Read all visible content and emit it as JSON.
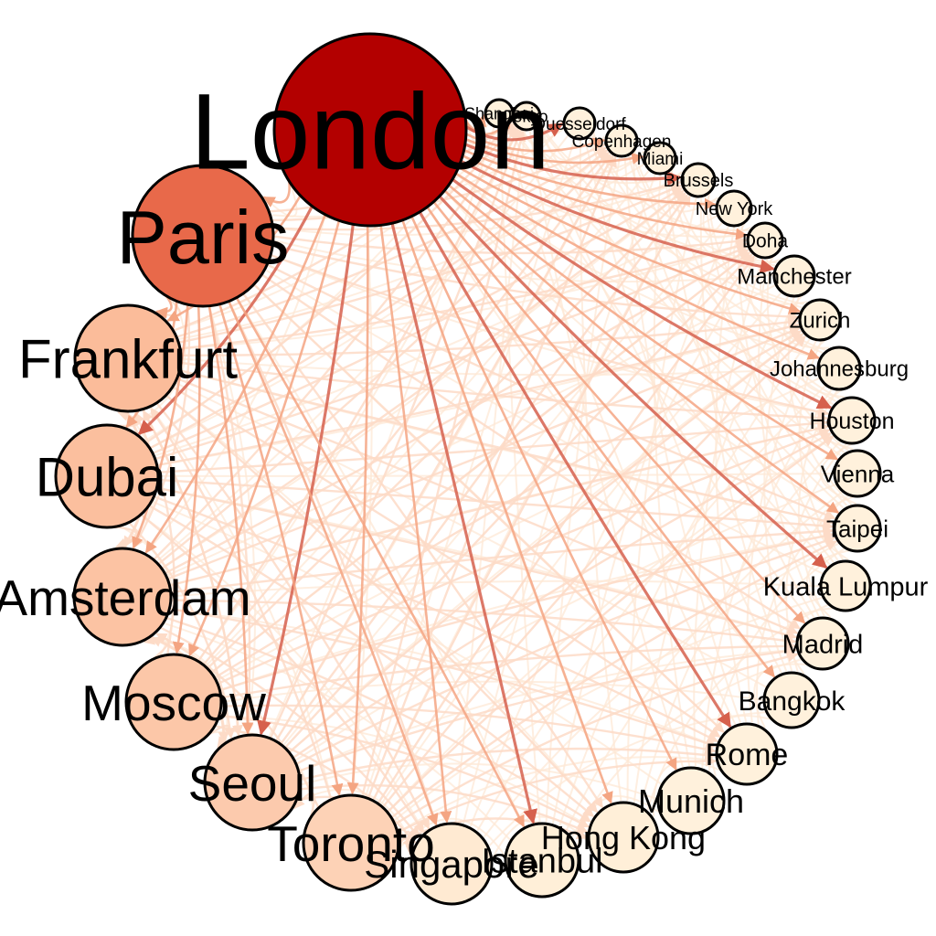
{
  "palette": {
    "background": "#ffffff",
    "node_stroke": "#000000",
    "edge_strong": "#d6604d",
    "edge_mid": "#f4a582",
    "edge_light": "#fddbc7",
    "edge_faint": "#fee8d6"
  },
  "cities": [
    {
      "name": "London",
      "color": "#b30000",
      "tier": 1
    },
    {
      "name": "Shanghai",
      "color": "#fff1dc",
      "tier": 6
    },
    {
      "name": "Tokyo",
      "color": "#fff1dc",
      "tier": 6
    },
    {
      "name": "Duesseldorf",
      "color": "#fff1dc",
      "tier": 6
    },
    {
      "name": "Copenhagen",
      "color": "#fff1dc",
      "tier": 6
    },
    {
      "name": "Miami",
      "color": "#fff1dc",
      "tier": 6
    },
    {
      "name": "Brussels",
      "color": "#fff1dc",
      "tier": 6
    },
    {
      "name": "New York",
      "color": "#fff1dc",
      "tier": 6
    },
    {
      "name": "Doha",
      "color": "#fff1dc",
      "tier": 6
    },
    {
      "name": "Manchester",
      "color": "#fff1dc",
      "tier": 6
    },
    {
      "name": "Zurich",
      "color": "#fff1dc",
      "tier": 6
    },
    {
      "name": "Johannesburg",
      "color": "#fff1dc",
      "tier": 6
    },
    {
      "name": "Houston",
      "color": "#fff1dc",
      "tier": 6
    },
    {
      "name": "Vienna",
      "color": "#fff1dc",
      "tier": 6
    },
    {
      "name": "Taipei",
      "color": "#fff1dc",
      "tier": 6
    },
    {
      "name": "Kuala Lumpur",
      "color": "#fff1dc",
      "tier": 6
    },
    {
      "name": "Madrid",
      "color": "#fff1dc",
      "tier": 6
    },
    {
      "name": "Bangkok",
      "color": "#fff1dc",
      "tier": 6
    },
    {
      "name": "Rome",
      "color": "#fff1dc",
      "tier": 5
    },
    {
      "name": "Munich",
      "color": "#fff1dc",
      "tier": 5
    },
    {
      "name": "Hong Kong",
      "color": "#ffefd8",
      "tier": 5
    },
    {
      "name": "Istanbul",
      "color": "#ffefd8",
      "tier": 5
    },
    {
      "name": "Singapore",
      "color": "#ffead2",
      "tier": 5
    },
    {
      "name": "Toronto",
      "color": "#fdd2b6",
      "tier": 4
    },
    {
      "name": "Seoul",
      "color": "#fccaad",
      "tier": 4
    },
    {
      "name": "Moscow",
      "color": "#fcc7a8",
      "tier": 3
    },
    {
      "name": "Amsterdam",
      "color": "#fcc3a3",
      "tier": 3
    },
    {
      "name": "Dubai",
      "color": "#fbbf9e",
      "tier": 3
    },
    {
      "name": "Frankfurt",
      "color": "#fbbc9a",
      "tier": 3
    },
    {
      "name": "Paris",
      "color": "#e8694a",
      "tier": 2
    }
  ]
}
